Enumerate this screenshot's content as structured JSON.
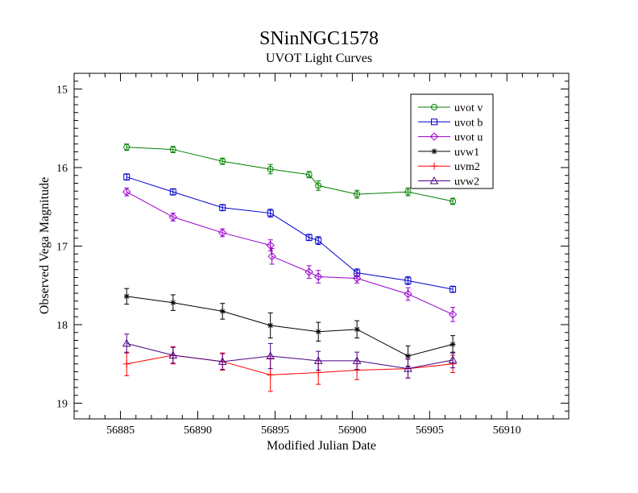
{
  "chart_data": {
    "type": "line",
    "title": "SNinNGC1578",
    "subtitle": "UVOT Light Curves",
    "xlabel": "Modified Julian Date",
    "ylabel": "Observed Vega Magnitude",
    "xlim": [
      56882,
      56914
    ],
    "ylim": [
      19.2,
      14.8
    ],
    "y_inverted": true,
    "x_ticks": [
      56885,
      56890,
      56895,
      56900,
      56905,
      56910
    ],
    "y_ticks": [
      15,
      16,
      17,
      18,
      19
    ],
    "grid": false,
    "legend_position": "top-right",
    "series": [
      {
        "name": "uvot v",
        "color": "#008000",
        "marker": "circle",
        "x": [
          56885.4,
          56888.4,
          56891.6,
          56894.7,
          56897.2,
          56897.8,
          56900.3,
          56903.6,
          56906.5
        ],
        "y": [
          15.74,
          15.77,
          15.92,
          16.02,
          16.09,
          16.23,
          16.34,
          16.31,
          16.43
        ],
        "err": [
          0.04,
          0.04,
          0.04,
          0.06,
          0.04,
          0.06,
          0.05,
          0.05,
          0.04
        ]
      },
      {
        "name": "uvot b",
        "color": "#0000cc",
        "marker": "square",
        "x": [
          56885.4,
          56888.4,
          56891.6,
          56894.7,
          56897.2,
          56897.8,
          56900.3,
          56903.6,
          56906.5
        ],
        "y": [
          16.12,
          16.31,
          16.51,
          16.58,
          16.89,
          16.93,
          17.34,
          17.44,
          17.55
        ],
        "err": [
          0.04,
          0.04,
          0.04,
          0.05,
          0.04,
          0.05,
          0.05,
          0.05,
          0.04
        ]
      },
      {
        "name": "uvot u",
        "color": "#9900cc",
        "marker": "diamond",
        "x": [
          56885.4,
          56888.4,
          56891.6,
          56894.7,
          56894.8,
          56897.2,
          56897.8,
          56900.3,
          56903.6,
          56906.5
        ],
        "y": [
          16.31,
          16.63,
          16.83,
          16.99,
          17.13,
          17.33,
          17.39,
          17.41,
          17.61,
          17.87
        ],
        "err": [
          0.05,
          0.05,
          0.05,
          0.07,
          0.1,
          0.08,
          0.08,
          0.06,
          0.08,
          0.09
        ]
      },
      {
        "name": "uvw1",
        "color": "#000000",
        "marker": "asterisk",
        "x": [
          56885.4,
          56888.4,
          56891.6,
          56894.7,
          56897.8,
          56900.3,
          56903.6,
          56906.5
        ],
        "y": [
          17.64,
          17.72,
          17.83,
          18.01,
          18.09,
          18.06,
          18.4,
          18.25
        ],
        "err": [
          0.1,
          0.1,
          0.1,
          0.16,
          0.12,
          0.11,
          0.13,
          0.11
        ]
      },
      {
        "name": "uvm2",
        "color": "#ff0000",
        "marker": "plus",
        "x": [
          56885.4,
          56888.4,
          56891.6,
          56894.7,
          56897.8,
          56900.3,
          56903.6,
          56906.5
        ],
        "y": [
          18.5,
          18.39,
          18.47,
          18.64,
          18.61,
          18.58,
          18.56,
          18.5
        ],
        "err": [
          0.15,
          0.11,
          0.11,
          0.21,
          0.15,
          0.12,
          0.12,
          0.11
        ]
      },
      {
        "name": "uvw2",
        "color": "#4b0082",
        "marker": "triangle",
        "x": [
          56885.4,
          56888.4,
          56891.6,
          56894.7,
          56897.8,
          56900.3,
          56903.6,
          56906.5
        ],
        "y": [
          18.24,
          18.39,
          18.47,
          18.4,
          18.46,
          18.46,
          18.56,
          18.45
        ],
        "err": [
          0.12,
          0.1,
          0.1,
          0.16,
          0.12,
          0.11,
          0.12,
          0.1
        ]
      }
    ]
  }
}
